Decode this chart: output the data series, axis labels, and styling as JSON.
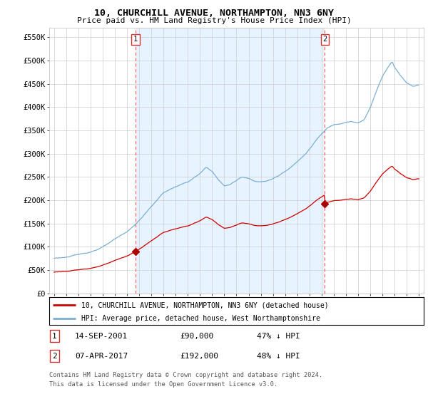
{
  "title": "10, CHURCHILL AVENUE, NORTHAMPTON, NN3 6NY",
  "subtitle": "Price paid vs. HM Land Registry's House Price Index (HPI)",
  "title_fontsize": 9.5,
  "subtitle_fontsize": 8,
  "ylim": [
    0,
    570000
  ],
  "yticks": [
    0,
    50000,
    100000,
    150000,
    200000,
    250000,
    300000,
    350000,
    400000,
    450000,
    500000,
    550000
  ],
  "ytick_labels": [
    "£0",
    "£50K",
    "£100K",
    "£150K",
    "£200K",
    "£250K",
    "£300K",
    "£350K",
    "£400K",
    "£450K",
    "£500K",
    "£550K"
  ],
  "hpi_color": "#7bafd4",
  "price_color": "#cc0000",
  "vline_color": "#ff5555",
  "marker_color": "#aa0000",
  "grid_color": "#cccccc",
  "shading_color": "#ddeeff",
  "background_color": "#ffffff",
  "transaction1_date": "14-SEP-2001",
  "transaction1_price": "£90,000",
  "transaction1_hpi": "47% ↓ HPI",
  "transaction1_x": 2001.71,
  "transaction1_y": 90000,
  "transaction2_date": "07-APR-2017",
  "transaction2_price": "£192,000",
  "transaction2_hpi": "48% ↓ HPI",
  "transaction2_x": 2017.27,
  "transaction2_y": 192000,
  "legend_line1": "10, CHURCHILL AVENUE, NORTHAMPTON, NN3 6NY (detached house)",
  "legend_line2": "HPI: Average price, detached house, West Northamptonshire",
  "footer1": "Contains HM Land Registry data © Crown copyright and database right 2024.",
  "footer2": "This data is licensed under the Open Government Licence v3.0.",
  "xlim_left": 1994.6,
  "xlim_right": 2025.4
}
